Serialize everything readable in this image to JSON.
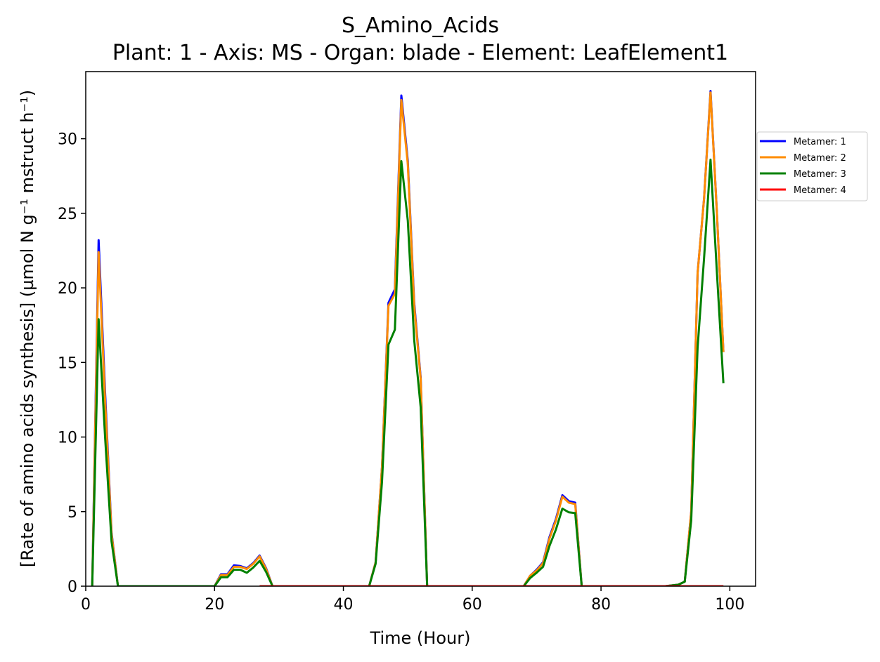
{
  "chart_data": {
    "type": "line",
    "title": "S_Amino_Acids",
    "subtitle": "Plant: 1 - Axis: MS - Organ: blade - Element: LeafElement1",
    "xlabel": "Time (Hour)",
    "ylabel": "[Rate of amino acids synthesis] (µmol N g⁻¹ mstruct h⁻¹)",
    "xlim": [
      0,
      104
    ],
    "ylim": [
      0,
      34.5
    ],
    "xticks": [
      0,
      20,
      40,
      60,
      80,
      100
    ],
    "yticks": [
      0,
      5,
      10,
      15,
      20,
      25,
      30
    ],
    "grid": false,
    "legend_position": "outside right",
    "series": [
      {
        "name": "Metamer: 1",
        "color": "#0000ff",
        "x": [
          1,
          2,
          3,
          4,
          5,
          6,
          10,
          15,
          20,
          21,
          22,
          23,
          24,
          25,
          26,
          27,
          28,
          29,
          30,
          35,
          40,
          44,
          45,
          46,
          47,
          48,
          49,
          50,
          51,
          52,
          53,
          54,
          60,
          65,
          68,
          69,
          70,
          71,
          72,
          73,
          74,
          75,
          76,
          77,
          78,
          85,
          90,
          92,
          93,
          94,
          95,
          96,
          97,
          98,
          99
        ],
        "y": [
          0,
          23.2,
          13,
          3.6,
          0,
          0,
          0,
          0,
          0,
          0.8,
          0.8,
          1.4,
          1.35,
          1.2,
          1.55,
          2.05,
          1.2,
          0,
          0,
          0,
          0,
          0,
          1.6,
          8,
          19,
          19.9,
          32.9,
          28.5,
          19,
          14,
          0,
          0,
          0,
          0,
          0,
          0.7,
          1.1,
          1.6,
          3.3,
          4.5,
          6.1,
          5.7,
          5.6,
          0,
          0,
          0,
          0,
          0.1,
          0.3,
          5,
          21,
          26,
          33.2,
          25,
          15.7
        ]
      },
      {
        "name": "Metamer: 2",
        "color": "#ff8c00",
        "x": [
          1,
          2,
          3,
          4,
          5,
          6,
          10,
          15,
          20,
          21,
          22,
          23,
          24,
          25,
          26,
          27,
          28,
          29,
          30,
          35,
          40,
          44,
          45,
          46,
          47,
          48,
          49,
          50,
          51,
          52,
          53,
          54,
          60,
          65,
          68,
          69,
          70,
          71,
          72,
          73,
          74,
          75,
          76,
          77,
          78,
          85,
          90,
          92,
          93,
          94,
          95,
          96,
          97,
          98,
          99
        ],
        "y": [
          0,
          22.4,
          12.5,
          3.5,
          0,
          0,
          0,
          0,
          0,
          0.75,
          0.75,
          1.3,
          1.3,
          1.15,
          1.5,
          2.0,
          1.15,
          0,
          0,
          0,
          0,
          0,
          1.6,
          8,
          18.8,
          19.6,
          32.6,
          28.3,
          18.8,
          13.9,
          0,
          0,
          0,
          0,
          0,
          0.7,
          1.05,
          1.55,
          3.2,
          4.4,
          6.0,
          5.6,
          5.5,
          0,
          0,
          0,
          0,
          0.1,
          0.3,
          5,
          21,
          26,
          33.1,
          25,
          15.7
        ]
      },
      {
        "name": "Metamer: 3",
        "color": "#008000",
        "x": [
          1,
          2,
          3,
          4,
          5,
          6,
          10,
          15,
          20,
          21,
          22,
          23,
          24,
          25,
          26,
          27,
          28,
          29,
          30,
          35,
          40,
          44,
          45,
          46,
          47,
          48,
          49,
          50,
          51,
          52,
          53,
          54,
          60,
          65,
          68,
          69,
          70,
          71,
          72,
          73,
          74,
          75,
          76,
          77,
          78,
          85,
          90,
          92,
          93,
          94,
          95,
          96,
          97,
          98,
          99
        ],
        "y": [
          0,
          17.9,
          10,
          3.0,
          0,
          0,
          0,
          0,
          0,
          0.6,
          0.6,
          1.1,
          1.1,
          0.9,
          1.25,
          1.7,
          0.95,
          0,
          0,
          0,
          0,
          0,
          1.5,
          7,
          16.2,
          17.2,
          28.5,
          24.5,
          16.5,
          12,
          0,
          0,
          0,
          0,
          0,
          0.55,
          0.9,
          1.3,
          2.7,
          3.8,
          5.2,
          4.95,
          4.9,
          0,
          0,
          0,
          0,
          0.1,
          0.3,
          4.4,
          16,
          22,
          28.6,
          21,
          13.6
        ]
      },
      {
        "name": "Metamer: 4",
        "color": "#ff0000",
        "x": [
          27,
          99
        ],
        "y": [
          0,
          0
        ]
      }
    ]
  }
}
